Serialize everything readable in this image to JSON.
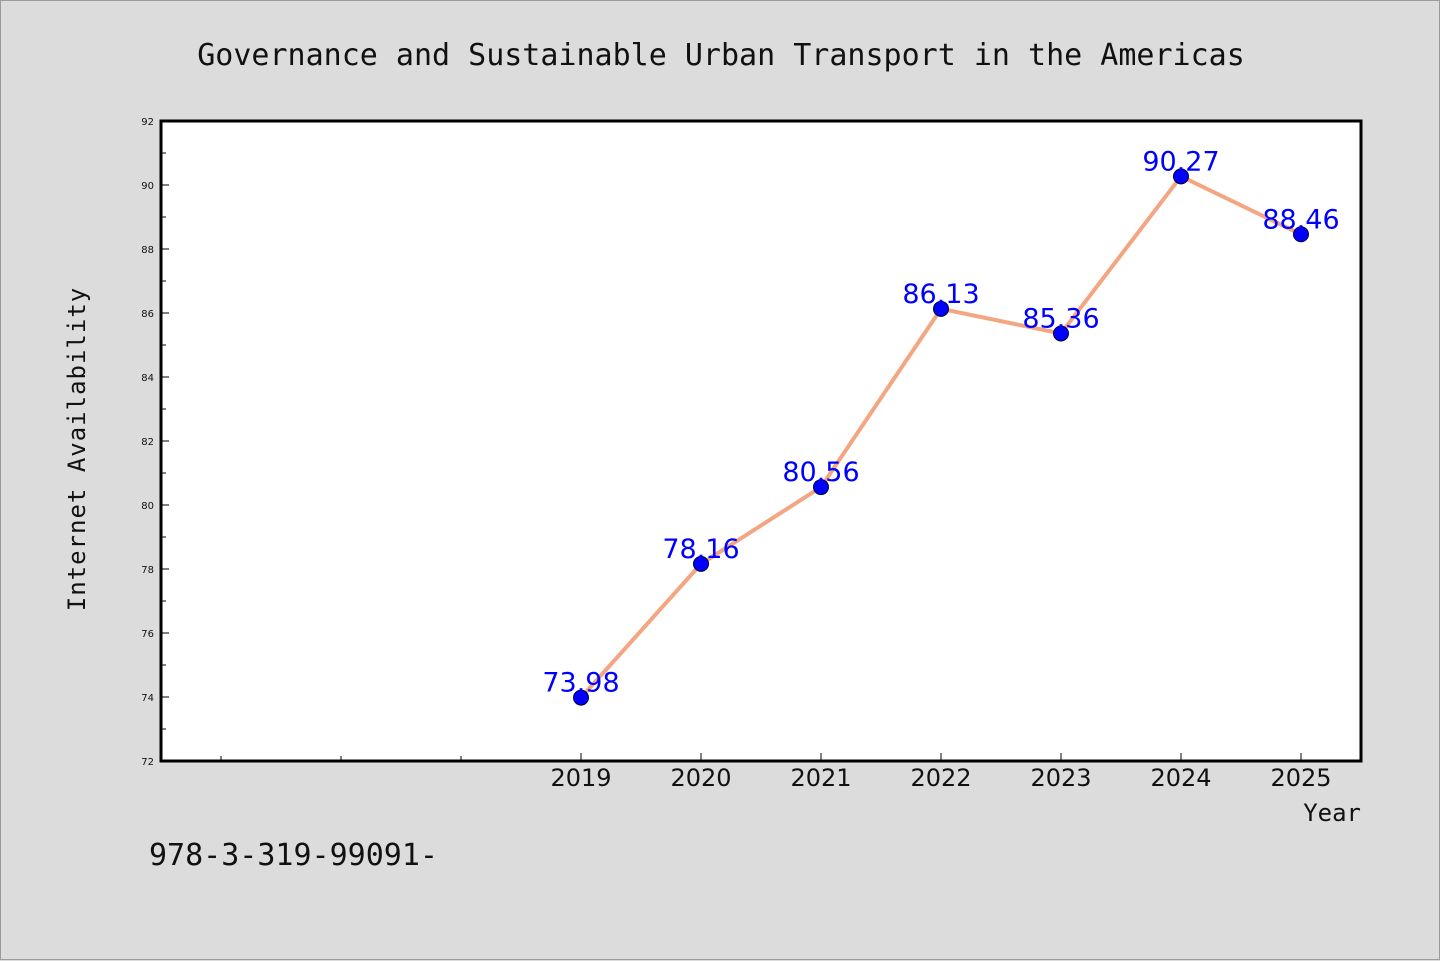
{
  "chart_data": {
    "type": "line",
    "title": "Governance and Sustainable Urban Transport in the Americas",
    "xlabel": "Year",
    "ylabel": "Internet Availability",
    "categories": [
      "2019",
      "2020",
      "2021",
      "2022",
      "2023",
      "2024",
      "2025"
    ],
    "series": [
      {
        "values": [
          73.98,
          78.16,
          80.56,
          86.13,
          85.36,
          90.27,
          88.46
        ]
      }
    ],
    "data_labels": [
      "73.98",
      "78.16",
      "80.56",
      "86.13",
      "85.36",
      "90.27",
      "88.46"
    ],
    "ylim": [
      72,
      92
    ],
    "yticks": [
      72,
      74,
      76,
      78,
      80,
      82,
      84,
      86,
      88,
      90,
      92
    ],
    "grid": false,
    "line_color": "#f4a582",
    "marker_color": "#0000ff",
    "label_color": "#0000ff"
  },
  "footer_text": "978-3-319-99091-"
}
